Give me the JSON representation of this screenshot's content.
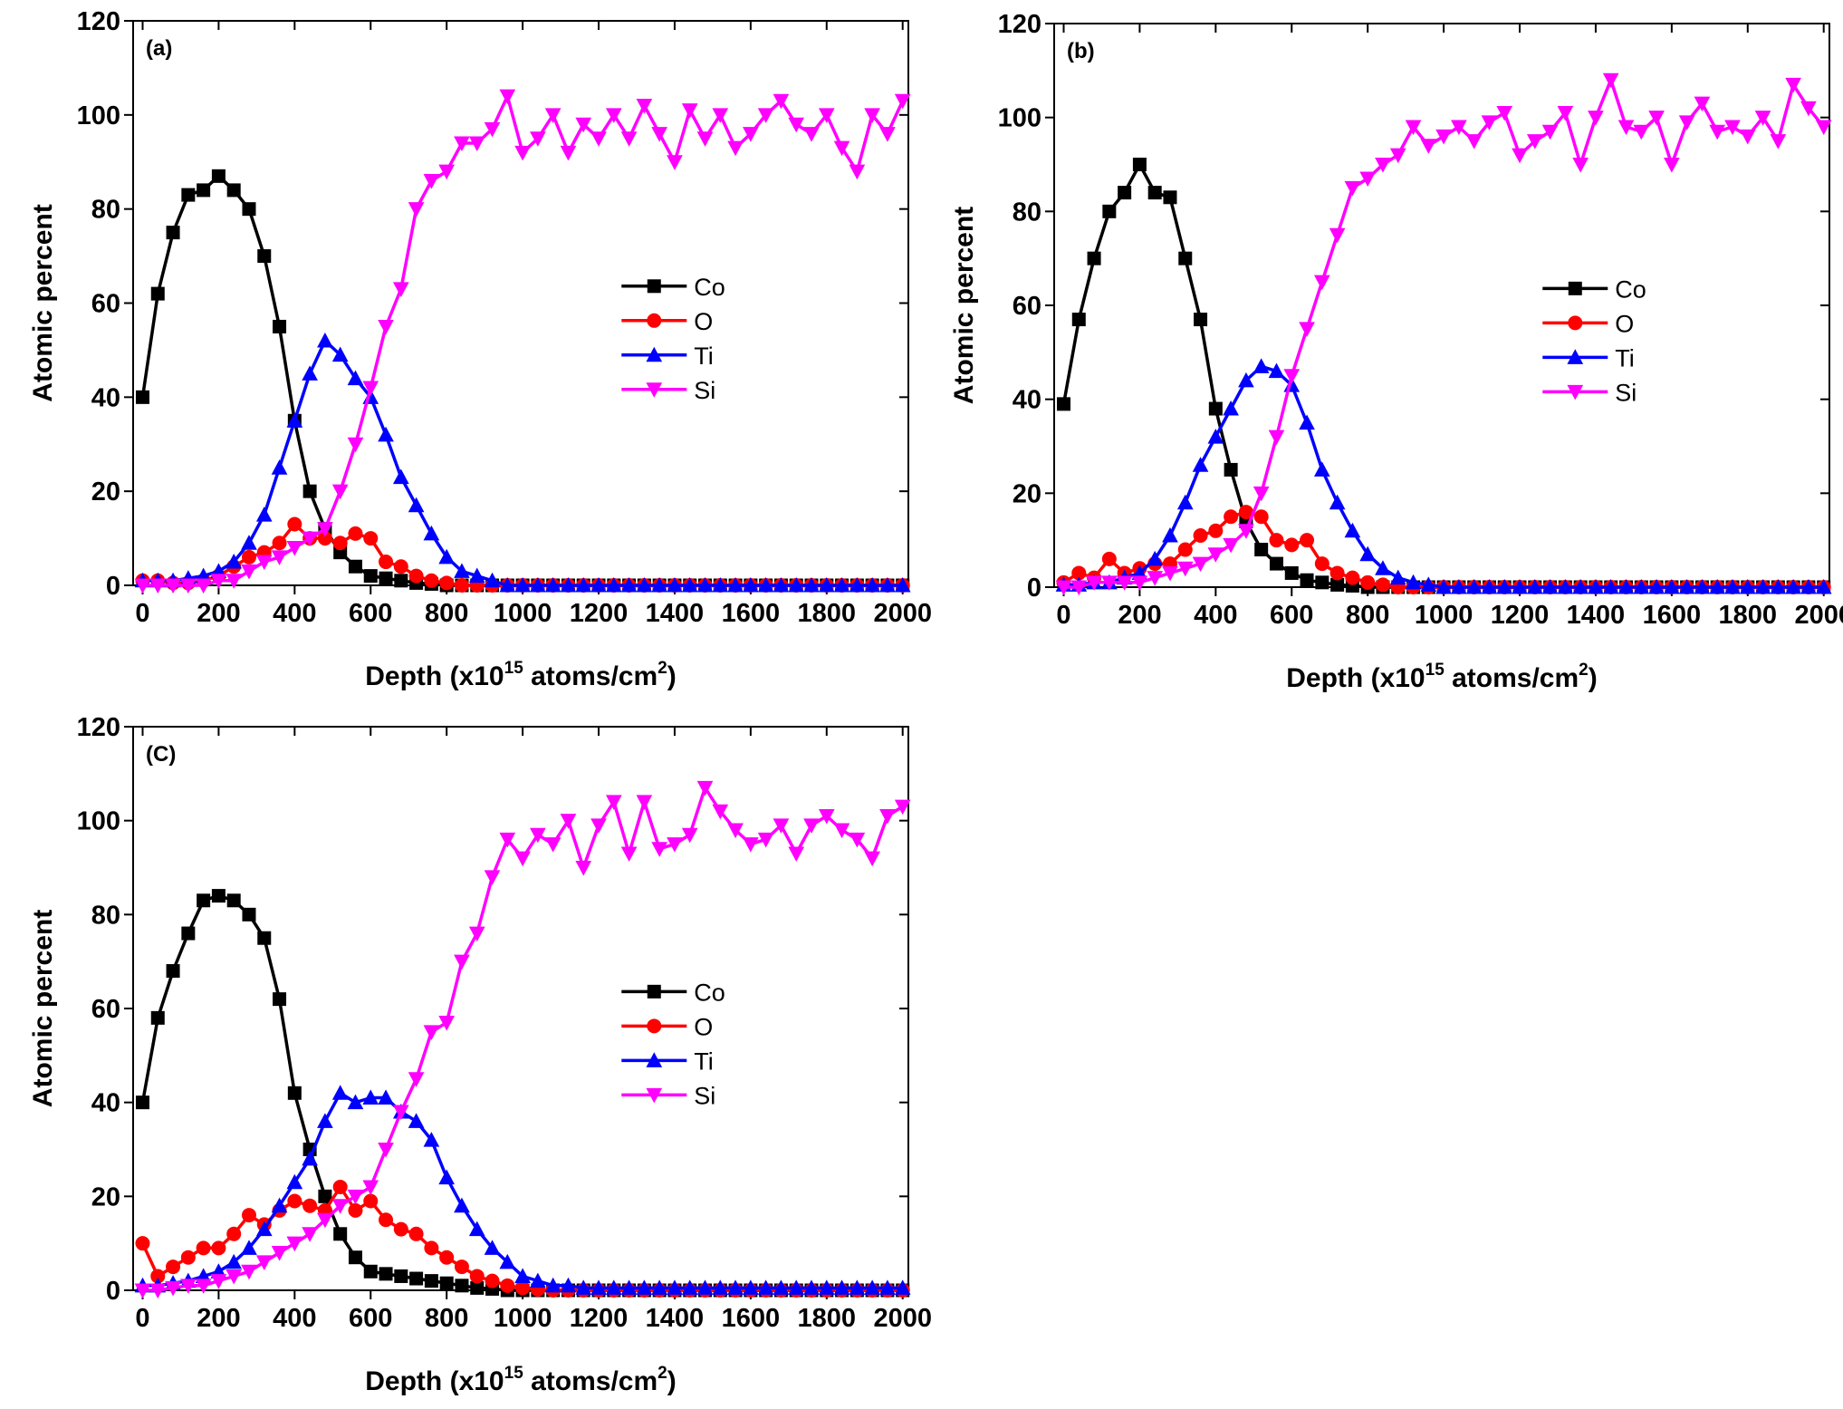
{
  "chart_data": [
    {
      "type": "line",
      "annotation": "(a)",
      "ylabel": "Atomic percent",
      "xlabel": [
        "Depth (x10",
        "15",
        " atoms/cm",
        "2",
        ")"
      ],
      "xlim": [
        -25,
        2015
      ],
      "ylim": [
        0,
        120
      ],
      "xticks": [
        0,
        200,
        400,
        600,
        800,
        1000,
        1200,
        1400,
        1600,
        1800,
        2000
      ],
      "yticks": [
        0,
        20,
        40,
        60,
        80,
        100,
        120
      ],
      "legend": "center right",
      "x": [
        0,
        40,
        80,
        120,
        160,
        200,
        240,
        280,
        320,
        360,
        400,
        440,
        480,
        520,
        560,
        600,
        640,
        680,
        720,
        760,
        800,
        840,
        880,
        920,
        960,
        1000,
        1040,
        1080,
        1120,
        1160,
        1200,
        1240,
        1280,
        1320,
        1360,
        1400,
        1440,
        1480,
        1520,
        1560,
        1600,
        1640,
        1680,
        1720,
        1760,
        1800,
        1840,
        1880,
        1920,
        1960,
        2000
      ],
      "series": [
        {
          "name": "Co",
          "color": "#000000",
          "marker": "square",
          "values": [
            40,
            62,
            75,
            83,
            84,
            87,
            84,
            80,
            70,
            55,
            35,
            20,
            12,
            7,
            4,
            2,
            1.5,
            1,
            0.5,
            0.3,
            0,
            0,
            0,
            0,
            0,
            0,
            0,
            0,
            0,
            0,
            0,
            0,
            0,
            0,
            0,
            0,
            0,
            0,
            0,
            0,
            0,
            0,
            0,
            0,
            0,
            0,
            0,
            0,
            0,
            0,
            0
          ]
        },
        {
          "name": "O",
          "color": "#ff0000",
          "marker": "circle",
          "values": [
            1,
            1,
            0.5,
            0.5,
            1,
            2,
            4,
            6,
            7,
            9,
            13,
            10,
            10,
            9,
            11,
            10,
            5,
            4,
            2,
            1,
            0.5,
            0,
            0,
            0,
            0,
            0,
            0,
            0,
            0,
            0,
            0,
            0,
            0,
            0,
            0,
            0,
            0,
            0,
            0,
            0,
            0,
            0,
            0,
            0,
            0,
            0,
            0,
            0,
            0,
            0,
            0
          ]
        },
        {
          "name": "Ti",
          "color": "#0000ff",
          "marker": "triangle-up",
          "values": [
            1,
            1,
            1,
            1.5,
            2,
            3,
            5,
            9,
            15,
            25,
            35,
            45,
            52,
            49,
            44,
            40,
            32,
            23,
            17,
            11,
            6,
            3,
            2,
            1,
            0,
            0,
            0,
            0,
            0,
            0,
            0,
            0,
            0,
            0,
            0,
            0,
            0,
            0,
            0,
            0,
            0,
            0,
            0,
            0,
            0,
            0,
            0,
            0,
            0,
            0,
            0
          ]
        },
        {
          "name": "Si",
          "color": "#ff00ff",
          "marker": "triangle-down",
          "values": [
            0,
            0,
            0,
            0,
            0,
            1,
            1,
            3,
            5,
            6,
            8,
            10,
            12,
            20,
            30,
            42,
            55,
            63,
            80,
            86,
            88,
            94,
            94,
            97,
            104,
            92,
            95,
            100,
            92,
            98,
            95,
            100,
            95,
            102,
            96,
            90,
            101,
            95,
            100,
            93,
            96,
            100,
            103,
            98,
            96,
            100,
            93,
            88,
            100,
            96,
            103
          ]
        }
      ]
    },
    {
      "type": "line",
      "annotation": "(b)",
      "ylabel": "Atomic percent",
      "xlabel": [
        "Depth (x10",
        "15",
        " atoms/cm",
        "2",
        ")"
      ],
      "xlim": [
        -25,
        2015
      ],
      "ylim": [
        0,
        120
      ],
      "xticks": [
        0,
        200,
        400,
        600,
        800,
        1000,
        1200,
        1400,
        1600,
        1800,
        2000
      ],
      "yticks": [
        0,
        20,
        40,
        60,
        80,
        100,
        120
      ],
      "legend": "center right",
      "x": [
        0,
        40,
        80,
        120,
        160,
        200,
        240,
        280,
        320,
        360,
        400,
        440,
        480,
        520,
        560,
        600,
        640,
        680,
        720,
        760,
        800,
        840,
        880,
        920,
        960,
        1000,
        1040,
        1080,
        1120,
        1160,
        1200,
        1240,
        1280,
        1320,
        1360,
        1400,
        1440,
        1480,
        1520,
        1560,
        1600,
        1640,
        1680,
        1720,
        1760,
        1800,
        1840,
        1880,
        1920,
        1960,
        2000
      ],
      "series": [
        {
          "name": "Co",
          "color": "#000000",
          "marker": "square",
          "values": [
            39,
            57,
            70,
            80,
            84,
            90,
            84,
            83,
            70,
            57,
            38,
            25,
            14,
            8,
            5,
            3,
            1.5,
            1,
            0.5,
            0.3,
            0,
            0,
            0,
            0,
            0,
            0,
            0,
            0,
            0,
            0,
            0,
            0,
            0,
            0,
            0,
            0,
            0,
            0,
            0,
            0,
            0,
            0,
            0,
            0,
            0,
            0,
            0,
            0,
            0,
            0,
            0
          ]
        },
        {
          "name": "O",
          "color": "#ff0000",
          "marker": "circle",
          "values": [
            1,
            3,
            2,
            6,
            3,
            4,
            5,
            5,
            8,
            11,
            12,
            15,
            16,
            15,
            10,
            9,
            10,
            5,
            3,
            2,
            1,
            0.5,
            0,
            0,
            0,
            0,
            0,
            0,
            0,
            0,
            0,
            0,
            0,
            0,
            0,
            0,
            0,
            0,
            0,
            0,
            0,
            0,
            0,
            0,
            0,
            0,
            0,
            0,
            0,
            0,
            0
          ]
        },
        {
          "name": "Ti",
          "color": "#0000ff",
          "marker": "triangle-up",
          "values": [
            0.5,
            0.5,
            1,
            1,
            2,
            3,
            6,
            11,
            18,
            26,
            32,
            38,
            44,
            47,
            46,
            43,
            35,
            25,
            18,
            12,
            7,
            4,
            2,
            1,
            0.5,
            0,
            0,
            0,
            0,
            0,
            0,
            0,
            0,
            0,
            0,
            0,
            0,
            0,
            0,
            0,
            0,
            0,
            0,
            0,
            0,
            0,
            0,
            0,
            0,
            0,
            0
          ]
        },
        {
          "name": "Si",
          "color": "#ff00ff",
          "marker": "triangle-down",
          "values": [
            0,
            0,
            1,
            1,
            1,
            1,
            2,
            3,
            4,
            5,
            7,
            9,
            12,
            20,
            32,
            45,
            55,
            65,
            75,
            85,
            87,
            90,
            92,
            98,
            94,
            96,
            98,
            95,
            99,
            101,
            92,
            95,
            97,
            101,
            90,
            100,
            108,
            98,
            97,
            100,
            90,
            99,
            103,
            97,
            98,
            96,
            100,
            95,
            107,
            102,
            98
          ]
        }
      ]
    },
    {
      "type": "line",
      "annotation": "(C)",
      "ylabel": "Atomic percent",
      "xlabel": [
        "Depth (x10",
        "15",
        " atoms/cm",
        "2",
        ")"
      ],
      "xlim": [
        -25,
        2015
      ],
      "ylim": [
        0,
        120
      ],
      "xticks": [
        0,
        200,
        400,
        600,
        800,
        1000,
        1200,
        1400,
        1600,
        1800,
        2000
      ],
      "yticks": [
        0,
        20,
        40,
        60,
        80,
        100,
        120
      ],
      "legend": "center right",
      "x": [
        0,
        40,
        80,
        120,
        160,
        200,
        240,
        280,
        320,
        360,
        400,
        440,
        480,
        520,
        560,
        600,
        640,
        680,
        720,
        760,
        800,
        840,
        880,
        920,
        960,
        1000,
        1040,
        1080,
        1120,
        1160,
        1200,
        1240,
        1280,
        1320,
        1360,
        1400,
        1440,
        1480,
        1520,
        1560,
        1600,
        1640,
        1680,
        1720,
        1760,
        1800,
        1840,
        1880,
        1920,
        1960,
        2000
      ],
      "series": [
        {
          "name": "Co",
          "color": "#000000",
          "marker": "square",
          "values": [
            40,
            58,
            68,
            76,
            83,
            84,
            83,
            80,
            75,
            62,
            42,
            30,
            20,
            12,
            7,
            4,
            3.5,
            3,
            2.5,
            2,
            1.5,
            1,
            0.5,
            0.3,
            0,
            0,
            0,
            0,
            0,
            0,
            0,
            0,
            0,
            0,
            0,
            0,
            0,
            0,
            0,
            0,
            0,
            0,
            0,
            0,
            0,
            0,
            0,
            0,
            0,
            0,
            0
          ]
        },
        {
          "name": "O",
          "color": "#ff0000",
          "marker": "circle",
          "values": [
            10,
            3,
            5,
            7,
            9,
            9,
            12,
            16,
            14,
            17,
            19,
            18,
            17,
            22,
            17,
            19,
            15,
            13,
            12,
            9,
            7,
            5,
            3,
            2,
            1,
            0.5,
            0.2,
            0,
            0,
            0,
            0,
            0,
            0,
            0,
            0,
            0,
            0,
            0,
            0,
            0,
            0,
            0,
            0,
            0,
            0,
            0,
            0,
            0,
            0,
            0,
            0
          ]
        },
        {
          "name": "Ti",
          "color": "#0000ff",
          "marker": "triangle-up",
          "values": [
            1,
            1,
            1.5,
            2,
            3,
            4,
            6,
            9,
            13,
            18,
            23,
            28,
            36,
            42,
            40,
            41,
            41,
            38,
            36,
            32,
            24,
            18,
            13,
            9,
            6,
            3,
            2,
            1,
            1,
            0.5,
            0.5,
            0.5,
            0.5,
            0.5,
            0.5,
            0.5,
            0.5,
            0.5,
            0.5,
            0.5,
            0.5,
            0.5,
            0.5,
            0.5,
            0.5,
            0.5,
            0.5,
            0.5,
            0.5,
            0.5,
            0.5
          ]
        },
        {
          "name": "Si",
          "color": "#ff00ff",
          "marker": "triangle-down",
          "values": [
            0,
            0,
            0.5,
            1,
            1,
            2,
            3,
            4,
            6,
            8,
            10,
            12,
            15,
            18,
            20,
            22,
            30,
            38,
            45,
            55,
            57,
            70,
            76,
            88,
            96,
            92,
            97,
            95,
            100,
            90,
            99,
            104,
            93,
            104,
            94,
            95,
            97,
            107,
            102,
            98,
            95,
            96,
            99,
            93,
            99,
            101,
            98,
            96,
            92,
            101,
            103
          ]
        }
      ]
    }
  ]
}
